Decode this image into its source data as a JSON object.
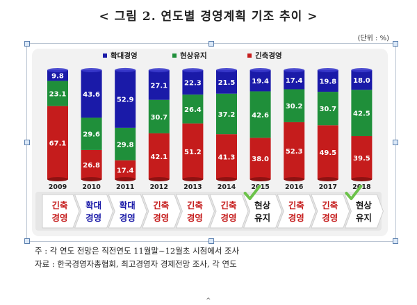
{
  "title": "< 그림 2.  연도별 경영계획 기조 추이 >",
  "unit": "(단위 : %)",
  "notes": {
    "note1": "주 : 각 연도 전망은 직전연도 11월말~12월초 시점에서 조사",
    "note2": "자료 : 한국경영자총협회, 최고경영자 경제전망 조사, 각 연도"
  },
  "colors": {
    "expand": "#1a1aa8",
    "maintain": "#1f8f3a",
    "contract": "#c51c1c",
    "check": "#6cc24a"
  },
  "chart_data": {
    "type": "bar",
    "stacked": true,
    "categories": [
      "2009",
      "2010",
      "2011",
      "2012",
      "2013",
      "2014",
      "2015",
      "2016",
      "2017",
      "2018"
    ],
    "series": [
      {
        "name": "긴축경영",
        "values": [
          67.1,
          26.8,
          17.4,
          42.1,
          51.2,
          41.3,
          38.0,
          52.3,
          49.5,
          39.5
        ]
      },
      {
        "name": "현상유지",
        "values": [
          23.1,
          29.6,
          29.8,
          30.7,
          26.4,
          37.2,
          42.6,
          30.2,
          30.7,
          42.5
        ]
      },
      {
        "name": "확대경영",
        "values": [
          9.8,
          43.6,
          52.9,
          27.1,
          22.3,
          21.5,
          19.4,
          17.4,
          19.8,
          18.0
        ]
      }
    ],
    "legend_order": [
      "확대경영",
      "현상유지",
      "긴축경영"
    ],
    "legend_position": "top",
    "ylim": [
      0,
      100
    ],
    "grid": false,
    "stance_row": [
      [
        "긴축",
        "경영"
      ],
      [
        "확대",
        "경영"
      ],
      [
        "확대",
        "경영"
      ],
      [
        "긴축",
        "경영"
      ],
      [
        "긴축",
        "경영"
      ],
      [
        "긴축",
        "경영"
      ],
      [
        "현상",
        "유지"
      ],
      [
        "긴축",
        "경영"
      ],
      [
        "긴축",
        "경영"
      ],
      [
        "현상",
        "유지"
      ]
    ],
    "stance_check_marks": [
      "2015",
      "2018"
    ]
  }
}
